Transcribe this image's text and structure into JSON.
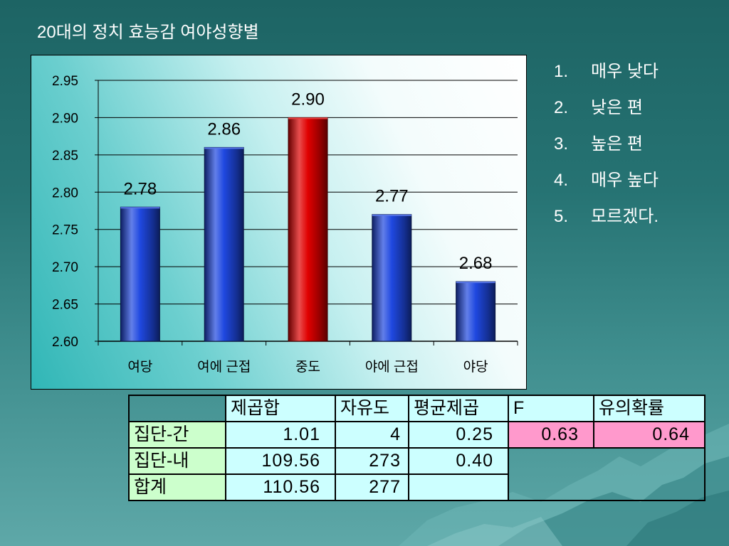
{
  "slide": {
    "title": "20대의 정치 효능감 여야성향별"
  },
  "chart_data": {
    "type": "bar",
    "categories": [
      "여당",
      "여에 근접",
      "중도",
      "야에 근접",
      "야당"
    ],
    "values": [
      2.78,
      2.86,
      2.9,
      2.77,
      2.68
    ],
    "data_labels": [
      "2.78",
      "2.86",
      "2.90",
      "2.77",
      "2.68"
    ],
    "ylim": [
      2.6,
      2.95
    ],
    "yticks": [
      "2.60",
      "2.65",
      "2.70",
      "2.75",
      "2.80",
      "2.85",
      "2.90",
      "2.95"
    ],
    "bar_colors": [
      "#1f48e0",
      "#1f48e0",
      "#e00000",
      "#1f48e0",
      "#1f48e0"
    ],
    "grid": true
  },
  "scale_legend": {
    "items": [
      {
        "number": "1.",
        "label": "매우 낮다"
      },
      {
        "number": "2.",
        "label": "낮은 편"
      },
      {
        "number": "3.",
        "label": "높은 편"
      },
      {
        "number": "4.",
        "label": "매우 높다"
      },
      {
        "number": "5.",
        "label": "모르겠다."
      }
    ]
  },
  "anova_table": {
    "headers": {
      "ss": "제곱합",
      "df": "자유도",
      "ms": "평균제곱",
      "f": "F",
      "p": "유의확률"
    },
    "rows": [
      {
        "label": "집단-간",
        "ss": "1.01",
        "df": "4",
        "ms": "0.25",
        "f": "0.63",
        "p": "0.64"
      },
      {
        "label": "집단-내",
        "ss": "109.56",
        "df": "273",
        "ms": "0.40"
      },
      {
        "label": "합계",
        "ss": "110.56",
        "df": "277"
      }
    ],
    "colors": {
      "header": "#ccffff",
      "row_label": "#ccffcc",
      "cell": "#ccffff",
      "highlight": "#ff99cc"
    }
  }
}
